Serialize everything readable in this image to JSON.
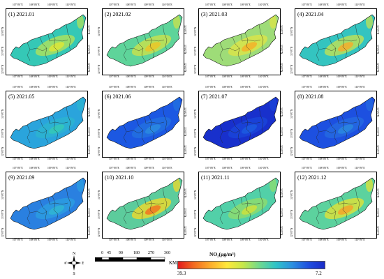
{
  "panels": [
    {
      "label": "(1) 2021.01",
      "fill": "#35c8b6",
      "hot": "#d8e63a",
      "hot2": "#a8e060"
    },
    {
      "label": "(2) 2021.02",
      "fill": "#5ed49a",
      "hot": "#e8c82a",
      "hot2": "#c4e050"
    },
    {
      "label": "(3) 2021.03",
      "fill": "#9edc78",
      "hot": "#f2b42a",
      "hot2": "#d8e44a"
    },
    {
      "label": "(4) 2021.04",
      "fill": "#34c4c0",
      "hot": "#f0b030",
      "hot2": "#b8e05a"
    },
    {
      "label": "(5) 2021.05",
      "fill": "#2aa4dc",
      "hot": "#34c8b8",
      "hot2": "#2cb4d0"
    },
    {
      "label": "(6) 2021.06",
      "fill": "#1c58e2",
      "hot": "#2a8ae0",
      "hot2": "#2270e0"
    },
    {
      "label": "(7) 2021.07",
      "fill": "#1830cc",
      "hot": "#1c5ae0",
      "hot2": "#1a44d8"
    },
    {
      "label": "(8) 2021.08",
      "fill": "#1d50e0",
      "hot": "#2a86e0",
      "hot2": "#2468e0"
    },
    {
      "label": "(9) 2021.09",
      "fill": "#2a80e0",
      "hot": "#30b4d4",
      "hot2": "#2c9ce0"
    },
    {
      "label": "(10) 2021.10",
      "fill": "#5ccc9c",
      "hot": "#f07a22",
      "hot2": "#e8d830"
    },
    {
      "label": "(11) 2021.11",
      "fill": "#52d0a8",
      "hot": "#c8e040",
      "hot2": "#8cdc70"
    },
    {
      "label": "(12) 2021.12",
      "fill": "#5cd29e",
      "hot": "#f0a82c",
      "hot2": "#d8e23c"
    }
  ],
  "x_ticks": [
    "107°0'0\"E",
    "108°0'0\"E",
    "109°0'0\"E",
    "110°0'0\"E"
  ],
  "y_ticks": [
    "34°0'0\"N",
    "33°0'0\"N",
    "32°0'0\"N"
  ],
  "north_arrow": {
    "n": "N",
    "s": "S",
    "e": "E",
    "w": "W"
  },
  "scale_bar": {
    "labels": [
      "0",
      "45",
      "90",
      "180",
      "270",
      "360"
    ],
    "unit": "KM"
  },
  "colorbar": {
    "title": "NO₂(μg/m³)",
    "min_label": "39.3",
    "max_label": "7.2",
    "colors": [
      "#e31a1c",
      "#f46d21",
      "#fdae2c",
      "#ffe83a",
      "#c6e84a",
      "#6fd98e",
      "#2ec4c8",
      "#2b90e0",
      "#1f4fe0",
      "#1a2bc8"
    ]
  }
}
